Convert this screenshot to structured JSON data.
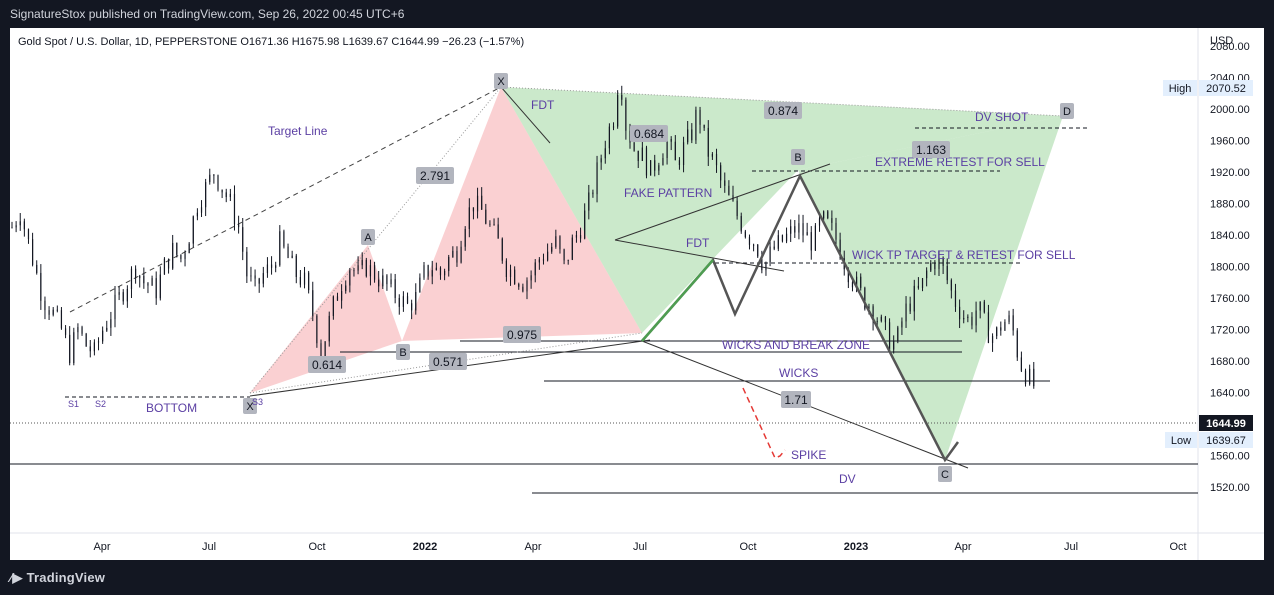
{
  "header": {
    "published": "SignatureStox published on TradingView.com, Sep 26, 2022 00:45 UTC+6"
  },
  "footer": {
    "brand": "TradingView"
  },
  "legend": {
    "text": "Gold Spot / U.S. Dollar, 1D, PEPPERSTONE  O1671.36  H1675.98  L1639.67  C1644.99  −26.23 (−1.57%)"
  },
  "chart_data": {
    "type": "candlestick",
    "currency": "USD",
    "ylim": [
      1500,
      2120
    ],
    "y_ticks": [
      1520,
      1560,
      1600,
      1640,
      1680,
      1720,
      1760,
      1800,
      1840,
      1880,
      1920,
      1960,
      2000,
      2040,
      2080
    ],
    "x_ticks": [
      "Apr",
      "Jul",
      "Oct",
      "2022",
      "Apr",
      "Jul",
      "Oct",
      "2023",
      "Apr",
      "Jul",
      "Oct"
    ],
    "last_price": "1644.99",
    "high_label": {
      "label": "High",
      "value": "2070.52"
    },
    "low_label": {
      "label": "Low",
      "value": "1639.67"
    },
    "price_path": [
      [
        0,
        1850
      ],
      [
        4,
        1870
      ],
      [
        9,
        1820
      ],
      [
        15,
        1760
      ],
      [
        20,
        1740
      ],
      [
        24,
        1720
      ],
      [
        28,
        1690
      ],
      [
        32,
        1720
      ],
      [
        36,
        1700
      ],
      [
        40,
        1690
      ],
      [
        44,
        1720
      ],
      [
        48,
        1740
      ],
      [
        52,
        1760
      ],
      [
        56,
        1780
      ],
      [
        60,
        1800
      ],
      [
        64,
        1780
      ],
      [
        70,
        1770
      ],
      [
        74,
        1800
      ],
      [
        78,
        1820
      ],
      [
        82,
        1810
      ],
      [
        86,
        1840
      ],
      [
        90,
        1880
      ],
      [
        94,
        1900
      ],
      [
        98,
        1920
      ],
      [
        102,
        1900
      ],
      [
        106,
        1880
      ],
      [
        110,
        1850
      ],
      [
        114,
        1790
      ],
      [
        118,
        1770
      ],
      [
        122,
        1790
      ],
      [
        126,
        1800
      ],
      [
        130,
        1830
      ],
      [
        134,
        1810
      ],
      [
        138,
        1790
      ],
      [
        142,
        1780
      ],
      [
        146,
        1740
      ],
      [
        150,
        1690
      ],
      [
        153,
        1720
      ],
      [
        156,
        1750
      ],
      [
        160,
        1780
      ],
      [
        164,
        1800
      ],
      [
        168,
        1790
      ],
      [
        172,
        1800
      ],
      [
        176,
        1790
      ],
      [
        180,
        1780
      ],
      [
        184,
        1770
      ],
      [
        188,
        1760
      ],
      [
        192,
        1750
      ],
      [
        196,
        1760
      ],
      [
        200,
        1790
      ],
      [
        204,
        1800
      ],
      [
        208,
        1790
      ],
      [
        212,
        1810
      ],
      [
        216,
        1820
      ],
      [
        220,
        1860
      ],
      [
        224,
        1880
      ],
      [
        228,
        1870
      ],
      [
        232,
        1850
      ],
      [
        236,
        1830
      ],
      [
        240,
        1800
      ],
      [
        244,
        1790
      ],
      [
        248,
        1780
      ],
      [
        252,
        1790
      ],
      [
        256,
        1810
      ],
      [
        260,
        1820
      ],
      [
        264,
        1830
      ],
      [
        268,
        1800
      ],
      [
        272,
        1830
      ],
      [
        276,
        1850
      ],
      [
        280,
        1880
      ],
      [
        284,
        1920
      ],
      [
        288,
        1960
      ],
      [
        292,
        1990
      ],
      [
        295,
        2050
      ],
      [
        298,
        1980
      ],
      [
        302,
        1950
      ],
      [
        306,
        1940
      ],
      [
        310,
        1920
      ],
      [
        314,
        1940
      ],
      [
        318,
        1960
      ],
      [
        322,
        1930
      ],
      [
        326,
        1950
      ],
      [
        330,
        1970
      ],
      [
        333,
        2000
      ],
      [
        337,
        1950
      ],
      [
        341,
        1930
      ],
      [
        345,
        1900
      ],
      [
        349,
        1880
      ],
      [
        353,
        1860
      ],
      [
        357,
        1840
      ],
      [
        361,
        1830
      ],
      [
        365,
        1800
      ],
      [
        369,
        1820
      ],
      [
        373,
        1830
      ],
      [
        377,
        1840
      ],
      [
        381,
        1850
      ],
      [
        385,
        1840
      ],
      [
        389,
        1830
      ],
      [
        393,
        1860
      ],
      [
        397,
        1850
      ],
      [
        401,
        1830
      ],
      [
        405,
        1800
      ],
      [
        409,
        1780
      ],
      [
        413,
        1760
      ],
      [
        417,
        1750
      ],
      [
        421,
        1730
      ],
      [
        425,
        1710
      ],
      [
        429,
        1700
      ],
      [
        433,
        1740
      ],
      [
        437,
        1760
      ],
      [
        441,
        1770
      ],
      [
        445,
        1800
      ],
      [
        449,
        1810
      ],
      [
        453,
        1790
      ],
      [
        457,
        1760
      ],
      [
        461,
        1740
      ],
      [
        465,
        1730
      ],
      [
        469,
        1750
      ],
      [
        473,
        1720
      ],
      [
        477,
        1710
      ],
      [
        481,
        1730
      ],
      [
        485,
        1730
      ],
      [
        489,
        1680
      ],
      [
        493,
        1660
      ],
      [
        497,
        1645
      ]
    ],
    "annotations": {
      "texts": [
        "Target Line",
        "BOTTOM",
        "FDT",
        "FAKE PATTERN",
        "FDT",
        "EXTREME RETEST FOR SELL",
        "WICK TP TARGET & RETEST FOR SELL",
        "WICKS AND BREAK ZONE",
        "WICKS",
        "SPIKE",
        "DV",
        "DV SHOT"
      ],
      "ratios": [
        "2.791",
        "0.614",
        "0.571",
        "0.975",
        "0.684",
        "0.874",
        "1.163",
        "1.71"
      ],
      "points": [
        "X",
        "A",
        "B",
        "X",
        "B",
        "C",
        "D"
      ],
      "swing_labels": [
        "S1",
        "S2",
        "S3"
      ]
    }
  }
}
